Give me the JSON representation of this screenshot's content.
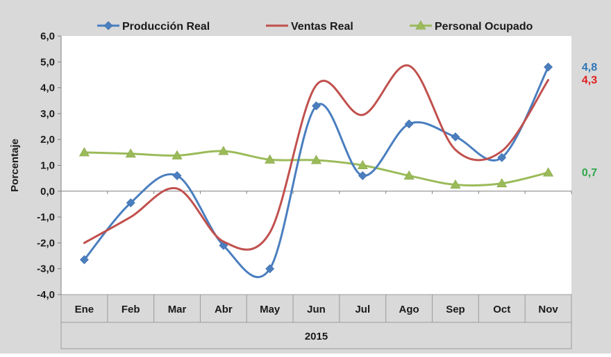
{
  "colors": {
    "background": "#d9d9d9",
    "plot": "#ffffff",
    "grid": "#9a9a9a",
    "produccion": "#4a7ebf",
    "ventas": "#c0504d",
    "personal": "#9bbb59",
    "end_produccion": "#2e75b6",
    "end_ventas": "#e02020",
    "end_personal": "#2ea84a"
  },
  "chart_data": {
    "type": "line",
    "title": "",
    "ylabel": "Porcentaje",
    "xlabel": "2015",
    "categories": [
      "Ene",
      "Feb",
      "Mar",
      "Abr",
      "May",
      "Jun",
      "Jul",
      "Ago",
      "Sep",
      "Oct",
      "Nov"
    ],
    "ylim": [
      -4.0,
      6.0
    ],
    "yticks": [
      {
        "value": 6,
        "label": "6,0"
      },
      {
        "value": 5,
        "label": "5,0"
      },
      {
        "value": 4,
        "label": "4,0"
      },
      {
        "value": 3,
        "label": "3,0"
      },
      {
        "value": 2,
        "label": "2,0"
      },
      {
        "value": 1,
        "label": "1,0"
      },
      {
        "value": 0,
        "label": "0,0"
      },
      {
        "value": -1,
        "label": "-1,0"
      },
      {
        "value": -2,
        "label": "-2,0"
      },
      {
        "value": -3,
        "label": "-3,0"
      },
      {
        "value": -4,
        "label": "-4,0"
      }
    ],
    "legend_position": "top",
    "series": [
      {
        "name": "Producción Real",
        "color_key": "produccion",
        "marker": "diamond",
        "values": [
          -2.65,
          -0.45,
          0.6,
          -2.1,
          -3.0,
          3.3,
          0.6,
          2.6,
          2.1,
          1.3,
          4.8
        ],
        "end_label": "4,8",
        "end_color_key": "end_produccion"
      },
      {
        "name": "Ventas Real",
        "color_key": "ventas",
        "marker": "none",
        "values": [
          -2.0,
          -1.0,
          0.1,
          -1.95,
          -1.6,
          4.1,
          2.95,
          4.85,
          1.6,
          1.55,
          4.3
        ],
        "end_label": "4,3",
        "end_color_key": "end_ventas"
      },
      {
        "name": "Personal Ocupado",
        "color_key": "personal",
        "marker": "triangle",
        "values": [
          1.5,
          1.45,
          1.38,
          1.55,
          1.22,
          1.2,
          1.0,
          0.6,
          0.25,
          0.3,
          0.72
        ],
        "end_label": "0,7",
        "end_color_key": "end_personal"
      }
    ]
  }
}
